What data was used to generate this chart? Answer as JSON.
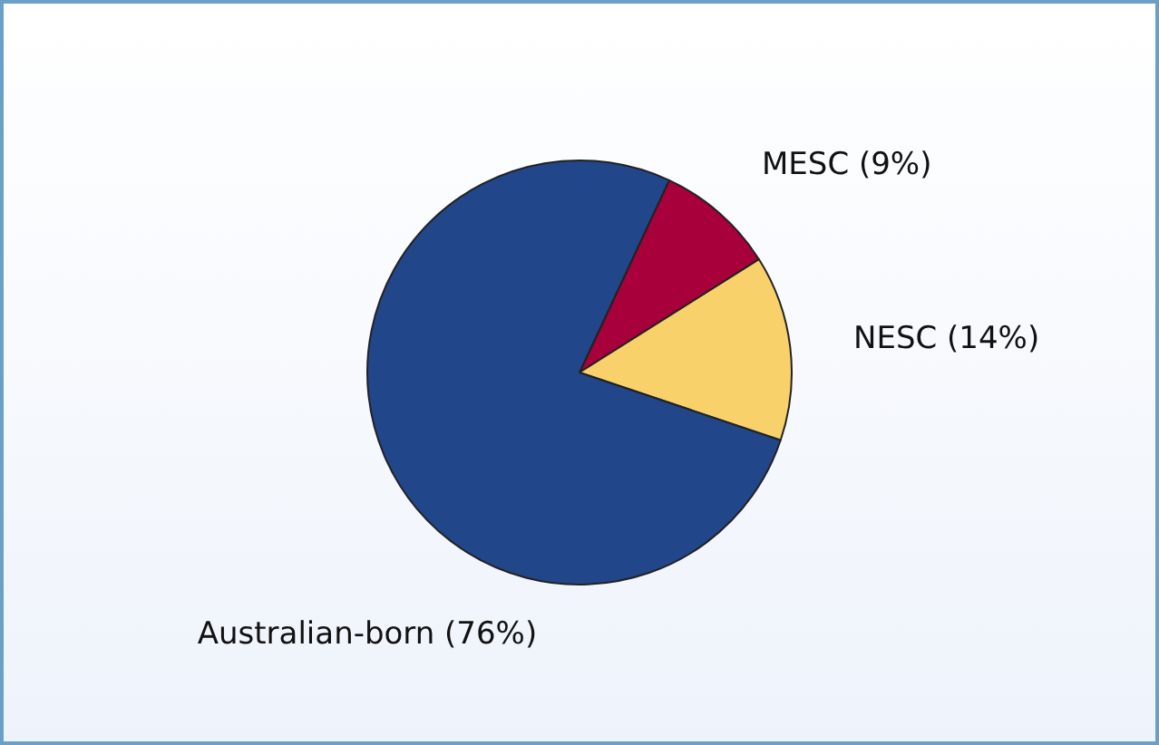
{
  "chart_data": {
    "type": "pie",
    "categories": [
      "MESC",
      "NESC",
      "Australian-born"
    ],
    "values": [
      9,
      14,
      76
    ],
    "colors": [
      "#a8003a",
      "#f9d16b",
      "#21468a"
    ],
    "value_labels": [
      "(9%)",
      "(14%)",
      "(76%)"
    ],
    "legend": false
  }
}
